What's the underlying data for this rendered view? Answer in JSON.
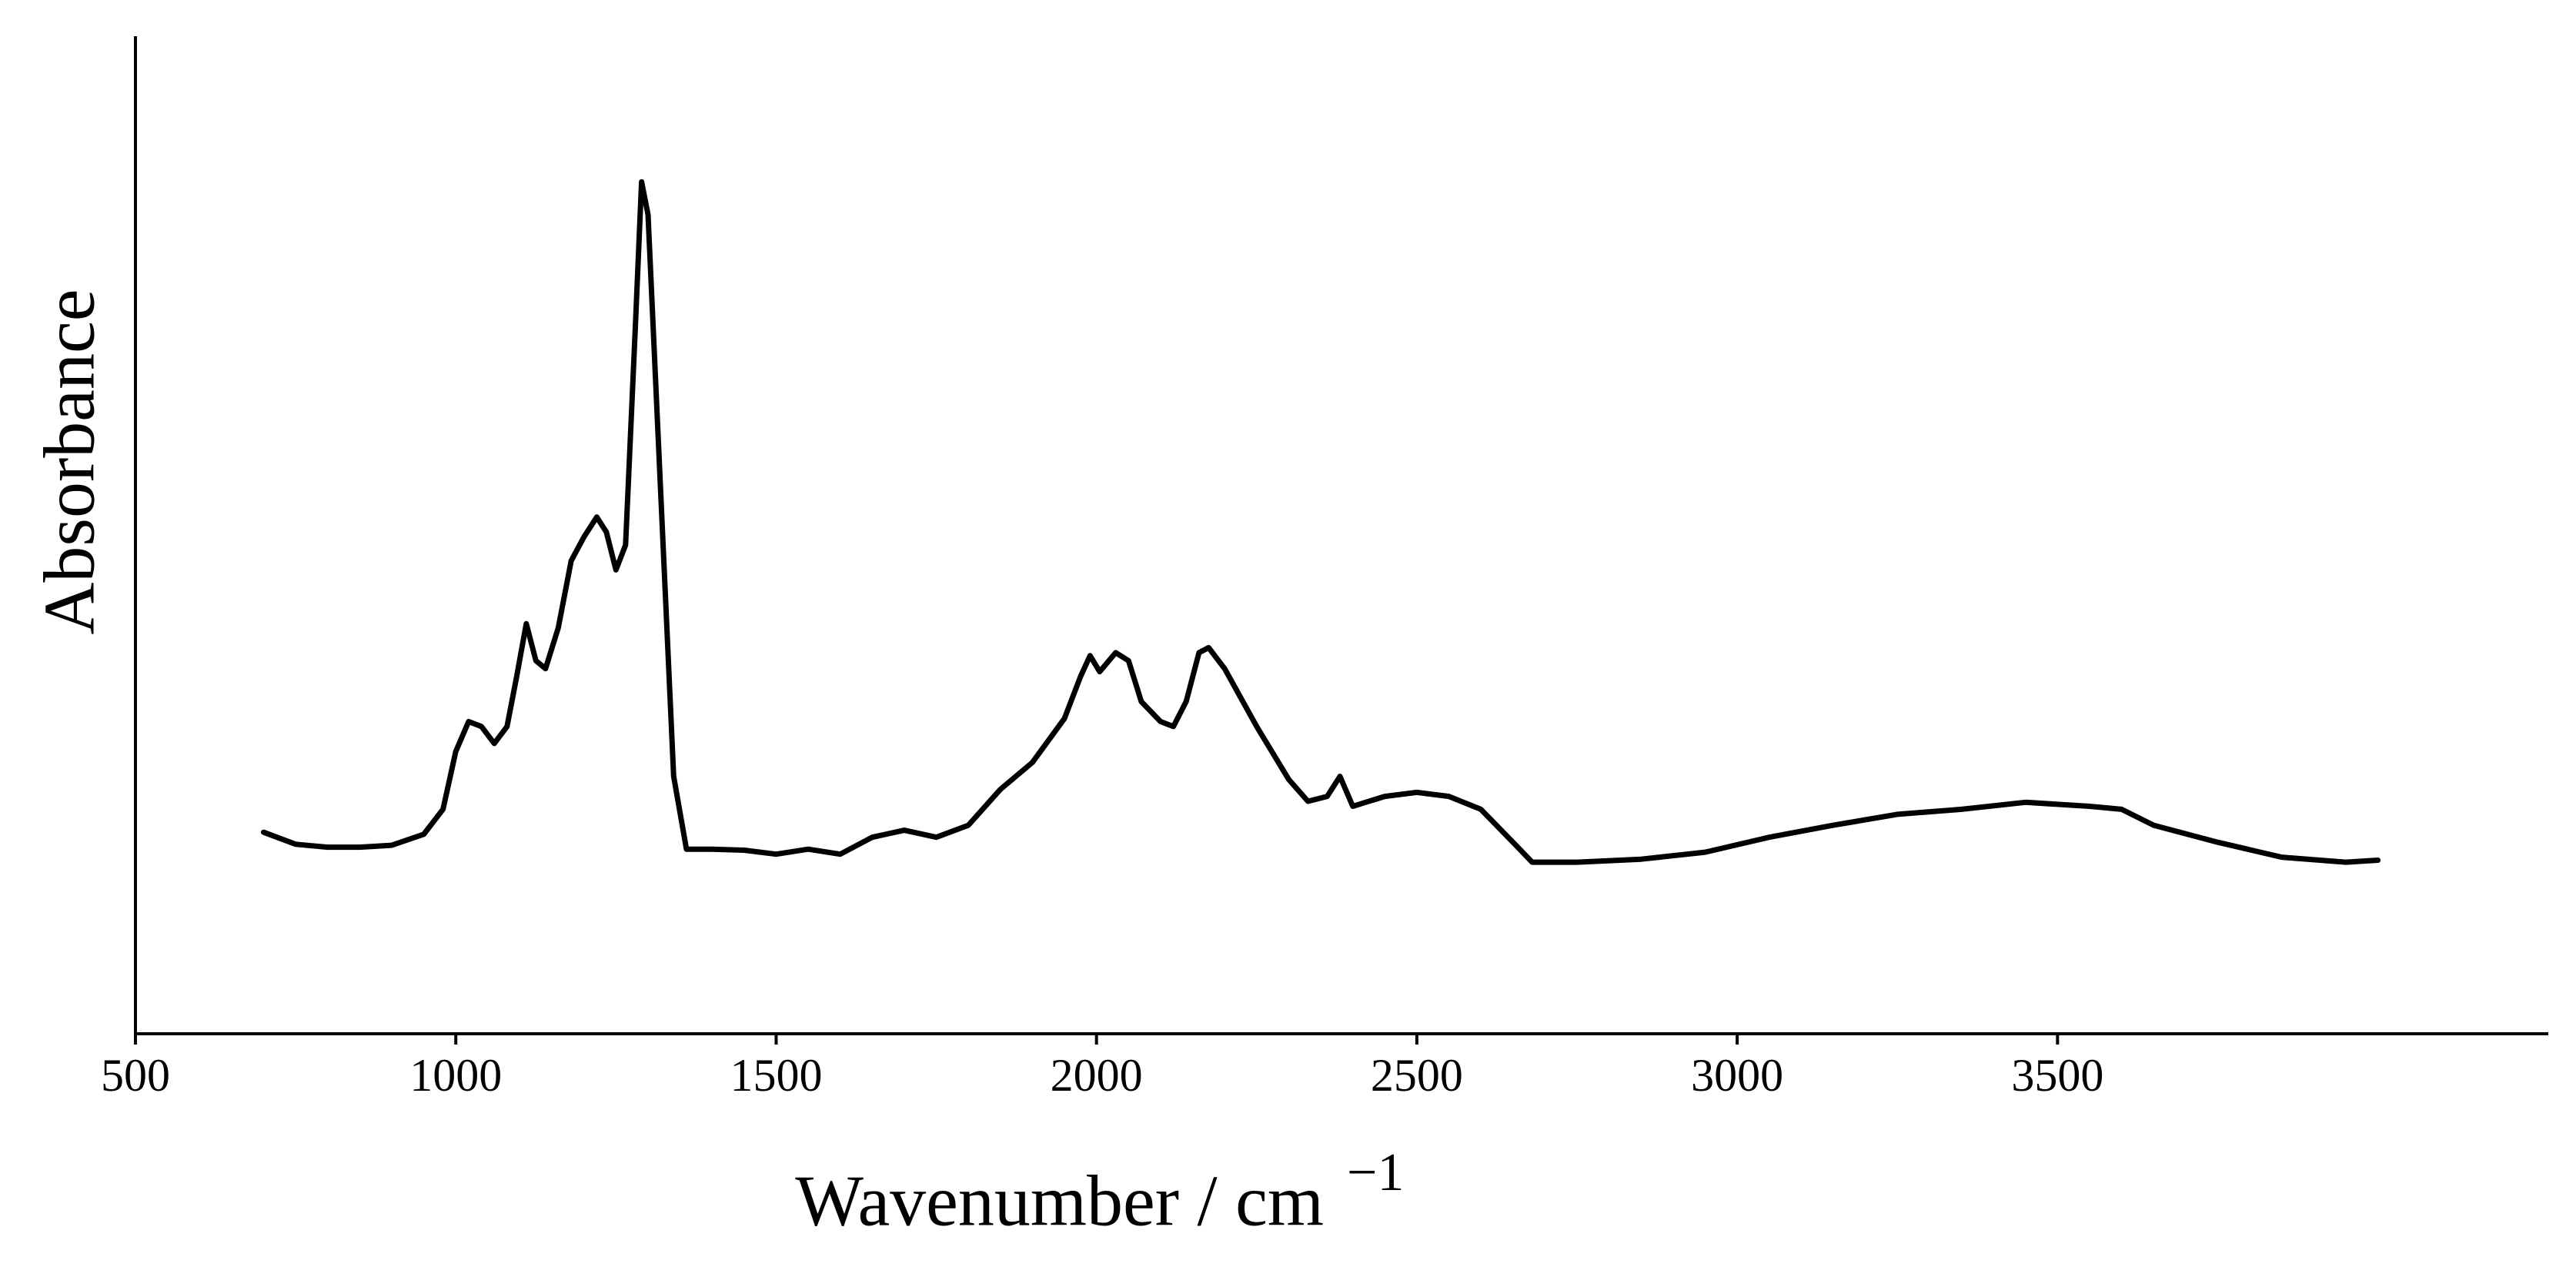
{
  "chart_data": {
    "type": "line",
    "y_label": "Absorbance",
    "x_label": "Wavenumber / cm",
    "x_label_sup": "−1",
    "x": [
      700,
      750,
      800,
      850,
      900,
      950,
      980,
      1000,
      1020,
      1040,
      1060,
      1080,
      1095,
      1110,
      1125,
      1140,
      1160,
      1180,
      1200,
      1220,
      1235,
      1250,
      1265,
      1280,
      1290,
      1300,
      1320,
      1340,
      1360,
      1400,
      1450,
      1500,
      1550,
      1600,
      1650,
      1700,
      1750,
      1800,
      1850,
      1900,
      1950,
      1975,
      1990,
      2005,
      2030,
      2050,
      2070,
      2100,
      2120,
      2140,
      2160,
      2175,
      2200,
      2250,
      2300,
      2330,
      2360,
      2380,
      2400,
      2450,
      2500,
      2550,
      2600,
      2650,
      2680,
      2750,
      2850,
      2950,
      3050,
      3150,
      3250,
      3350,
      3450,
      3550,
      3600,
      3650,
      3750,
      3850,
      3950,
      4000
    ],
    "series": [
      {
        "color": "#000000",
        "values": [
          20.2,
          19.0,
          18.7,
          18.7,
          18.9,
          20.0,
          22.5,
          28.3,
          31.3,
          30.8,
          29.1,
          30.8,
          35.8,
          41.1,
          37.4,
          36.6,
          40.7,
          47.4,
          49.8,
          51.8,
          50.3,
          46.5,
          49.0,
          70.5,
          85.4,
          82.1,
          54.0,
          25.8,
          18.5,
          18.5,
          18.4,
          18.0,
          18.5,
          18.0,
          19.7,
          20.4,
          19.7,
          20.9,
          24.5,
          27.2,
          31.6,
          35.8,
          37.9,
          36.3,
          38.2,
          37.4,
          33.3,
          31.3,
          30.8,
          33.3,
          38.2,
          38.7,
          36.6,
          30.8,
          25.5,
          23.3,
          23.8,
          25.8,
          22.8,
          23.8,
          24.2,
          23.8,
          22.5,
          19.2,
          17.2,
          17.2,
          17.5,
          18.2,
          19.7,
          20.9,
          22.0,
          22.5,
          23.2,
          22.8,
          22.5,
          20.9,
          19.2,
          17.7,
          17.2,
          17.4
        ]
      }
    ],
    "xlim": [
      500,
      4266
    ],
    "xticks": [
      500,
      1000,
      1500,
      2000,
      2500,
      3000,
      3500
    ],
    "ylim": [
      0,
      100
    ]
  }
}
